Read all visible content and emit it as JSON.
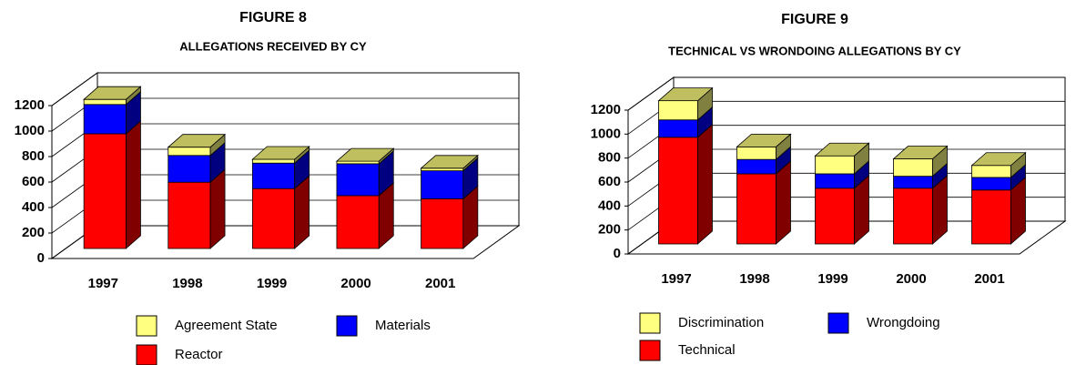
{
  "chart_data": [
    {
      "type": "bar",
      "stacked": true,
      "title": "FIGURE 8",
      "subtitle": "ALLEGATIONS RECEIVED BY CY",
      "categories": [
        "1997",
        "1998",
        "1999",
        "2000",
        "2001"
      ],
      "series": [
        {
          "name": "Reactor",
          "color": "#ff0000",
          "values": [
            900,
            520,
            470,
            415,
            390
          ]
        },
        {
          "name": "Materials",
          "color": "#0000ff",
          "values": [
            230,
            210,
            200,
            250,
            220
          ]
        },
        {
          "name": "Agreement State",
          "color": "#ffff80",
          "values": [
            40,
            65,
            30,
            20,
            20
          ]
        }
      ],
      "ylim": [
        0,
        1200
      ],
      "yticks": [
        0,
        200,
        400,
        600,
        800,
        1000,
        1200
      ],
      "grid": true
    },
    {
      "type": "bar",
      "stacked": true,
      "title": "FIGURE 9",
      "subtitle": "TECHNICAL VS WRONDOING ALLEGATIONS BY CY",
      "categories": [
        "1997",
        "1998",
        "1999",
        "2000",
        "2001"
      ],
      "series": [
        {
          "name": "Technical",
          "color": "#ff0000",
          "values": [
            890,
            585,
            465,
            465,
            450
          ]
        },
        {
          "name": "Wrongdoing",
          "color": "#0000ff",
          "values": [
            145,
            120,
            120,
            100,
            105
          ]
        },
        {
          "name": "Discrimination",
          "color": "#ffff80",
          "values": [
            160,
            105,
            150,
            145,
            100
          ]
        }
      ],
      "ylim": [
        0,
        1200
      ],
      "yticks": [
        0,
        200,
        400,
        600,
        800,
        1000,
        1200
      ],
      "grid": true
    }
  ]
}
